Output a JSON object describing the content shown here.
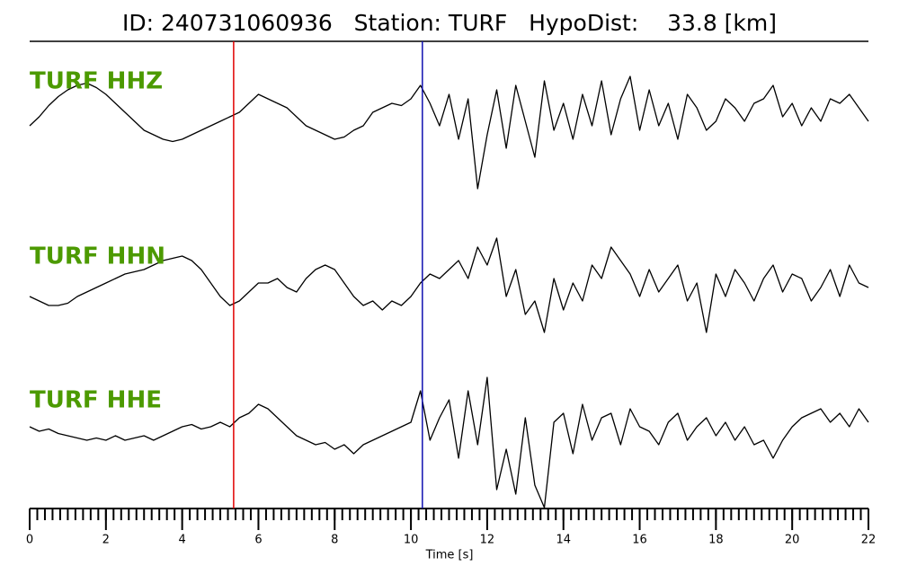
{
  "chart_data": {
    "type": "line",
    "title": "ID: 240731060936   Station: TURF   HypoDist:    33.8 [km]",
    "xlabel": "Time [s]",
    "xlim": [
      0,
      22
    ],
    "xticks": [
      0,
      2,
      4,
      6,
      8,
      10,
      12,
      14,
      16,
      18,
      20,
      22
    ],
    "xminorticks": [
      0,
      0.2,
      0.4,
      0.6,
      0.8,
      1,
      1.2,
      1.4,
      1.6,
      1.8,
      2,
      2.2,
      2.4,
      2.6,
      2.8,
      3,
      3.2,
      3.4,
      3.6,
      3.8,
      4,
      4.2,
      4.4,
      4.6,
      4.8,
      5,
      5.2,
      5.4,
      5.6,
      5.8,
      6,
      6.2,
      6.4,
      6.6,
      6.8,
      7,
      7.2,
      7.4,
      7.6,
      7.8,
      8,
      8.2,
      8.4,
      8.6,
      8.8,
      9,
      9.2,
      9.4,
      9.6,
      9.8,
      10,
      10.2,
      10.4,
      10.6,
      10.8,
      11,
      11.2,
      11.4,
      11.6,
      11.8,
      12,
      12.2,
      12.4,
      12.6,
      12.8,
      13,
      13.2,
      13.4,
      13.6,
      13.8,
      14,
      14.2,
      14.4,
      14.6,
      14.8,
      15,
      15.2,
      15.4,
      15.6,
      15.8,
      16,
      16.2,
      16.4,
      16.6,
      16.8,
      17,
      17.2,
      17.4,
      17.6,
      17.8,
      18,
      18.2,
      18.4,
      18.6,
      18.8,
      19,
      19.2,
      19.4,
      19.6,
      19.8,
      20,
      20.2,
      20.4,
      20.6,
      20.8,
      21,
      21.2,
      21.4,
      21.6,
      21.8,
      22
    ],
    "ylim": [
      -2,
      2
    ],
    "label_color": "#4c9a00",
    "markers": [
      {
        "x": 5.35,
        "color": "#e00000"
      },
      {
        "x": 10.3,
        "color": "#1010b0"
      }
    ],
    "x": [
      0,
      0.25,
      0.5,
      0.75,
      1,
      1.25,
      1.5,
      1.75,
      2,
      2.25,
      2.5,
      2.75,
      3,
      3.25,
      3.5,
      3.75,
      4,
      4.25,
      4.5,
      4.75,
      5,
      5.25,
      5.5,
      5.75,
      6,
      6.25,
      6.5,
      6.75,
      7,
      7.25,
      7.5,
      7.75,
      8,
      8.25,
      8.5,
      8.75,
      9,
      9.25,
      9.5,
      9.75,
      10,
      10.25,
      10.5,
      10.75,
      11,
      11.25,
      11.5,
      11.75,
      12,
      12.25,
      12.5,
      12.75,
      13,
      13.25,
      13.5,
      13.75,
      14,
      14.25,
      14.5,
      14.75,
      15,
      15.25,
      15.5,
      15.75,
      16,
      16.25,
      16.5,
      16.75,
      17,
      17.25,
      17.5,
      17.75,
      18,
      18.25,
      18.5,
      18.75,
      19,
      19.25,
      19.5,
      19.75,
      20,
      20.25,
      20.5,
      20.75,
      21,
      21.25,
      21.5,
      21.75,
      22
    ],
    "series": [
      {
        "name": "TURF HHZ",
        "color": "#000000",
        "values": [
          -0.3,
          -0.1,
          0.15,
          0.35,
          0.5,
          0.6,
          0.65,
          0.55,
          0.4,
          0.2,
          0,
          -0.2,
          -0.4,
          -0.5,
          -0.6,
          -0.65,
          -0.6,
          -0.5,
          -0.4,
          -0.3,
          -0.2,
          -0.1,
          0,
          0.2,
          0.4,
          0.3,
          0.2,
          0.1,
          -0.1,
          -0.3,
          -0.4,
          -0.5,
          -0.6,
          -0.55,
          -0.4,
          -0.3,
          0,
          0.1,
          0.2,
          0.15,
          0.3,
          0.6,
          0.2,
          -0.3,
          0.4,
          -0.6,
          0.3,
          -1.7,
          -0.5,
          0.5,
          -0.8,
          0.6,
          -0.2,
          -1.0,
          0.7,
          -0.4,
          0.2,
          -0.6,
          0.4,
          -0.3,
          0.7,
          -0.5,
          0.3,
          0.8,
          -0.4,
          0.5,
          -0.3,
          0.2,
          -0.6,
          0.4,
          0.1,
          -0.4,
          -0.2,
          0.3,
          0.1,
          -0.2,
          0.2,
          0.3,
          0.6,
          -0.1,
          0.2,
          -0.3,
          0.1,
          -0.2,
          0.3,
          0.2,
          0.4,
          0.1,
          -0.2
        ]
      },
      {
        "name": "TURF HHN",
        "color": "#000000",
        "values": [
          -0.2,
          -0.3,
          -0.4,
          -0.4,
          -0.35,
          -0.2,
          -0.1,
          0,
          0.1,
          0.2,
          0.3,
          0.35,
          0.4,
          0.5,
          0.6,
          0.65,
          0.7,
          0.6,
          0.4,
          0.1,
          -0.2,
          -0.4,
          -0.3,
          -0.1,
          0.1,
          0.1,
          0.2,
          0,
          -0.1,
          0.2,
          0.4,
          0.5,
          0.4,
          0.1,
          -0.2,
          -0.4,
          -0.3,
          -0.5,
          -0.3,
          -0.4,
          -0.2,
          0.1,
          0.3,
          0.2,
          0.4,
          0.6,
          0.2,
          0.9,
          0.5,
          1.1,
          -0.2,
          0.4,
          -0.6,
          -0.3,
          -1.0,
          0.2,
          -0.5,
          0.1,
          -0.3,
          0.5,
          0.2,
          0.9,
          0.6,
          0.3,
          -0.2,
          0.4,
          -0.1,
          0.2,
          0.5,
          -0.3,
          0.1,
          -1.0,
          0.3,
          -0.2,
          0.4,
          0.1,
          -0.3,
          0.2,
          0.5,
          -0.1,
          0.3,
          0.2,
          -0.3,
          0,
          0.4,
          -0.2,
          0.5,
          0.1,
          0
        ]
      },
      {
        "name": "TURF HHE",
        "color": "#000000",
        "values": [
          0.1,
          0,
          0.05,
          -0.05,
          -0.1,
          -0.15,
          -0.2,
          -0.15,
          -0.2,
          -0.1,
          -0.2,
          -0.15,
          -0.1,
          -0.2,
          -0.1,
          0,
          0.1,
          0.15,
          0.05,
          0.1,
          0.2,
          0.1,
          0.3,
          0.4,
          0.6,
          0.5,
          0.3,
          0.1,
          -0.1,
          -0.2,
          -0.3,
          -0.25,
          -0.4,
          -0.3,
          -0.5,
          -0.3,
          -0.2,
          -0.1,
          0,
          0.1,
          0.2,
          0.9,
          -0.2,
          0.3,
          0.7,
          -0.6,
          0.9,
          -0.3,
          1.2,
          -1.3,
          -0.4,
          -1.4,
          0.3,
          -1.2,
          -1.7,
          0.2,
          0.4,
          -0.5,
          0.6,
          -0.2,
          0.3,
          0.4,
          -0.3,
          0.5,
          0.1,
          0,
          -0.3,
          0.2,
          0.4,
          -0.2,
          0.1,
          0.3,
          -0.1,
          0.2,
          -0.2,
          0.1,
          -0.3,
          -0.2,
          -0.6,
          -0.2,
          0.1,
          0.3,
          0.4,
          0.5,
          0.2,
          0.4,
          0.1,
          0.5,
          0.2
        ]
      }
    ]
  }
}
